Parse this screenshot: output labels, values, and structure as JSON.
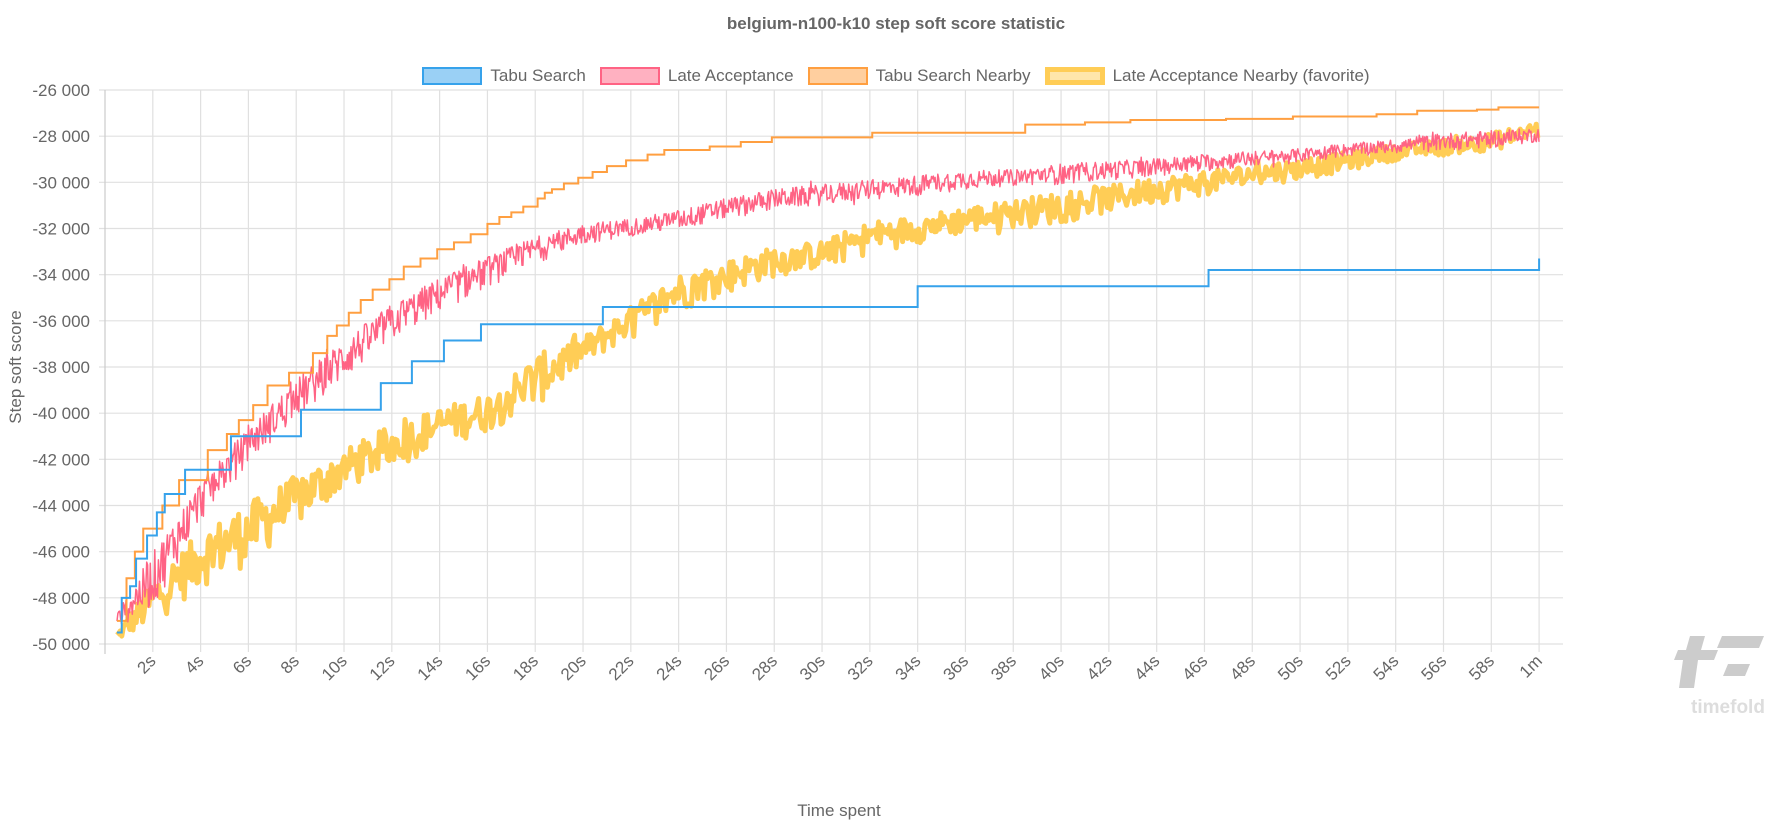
{
  "chart_data": {
    "type": "line",
    "title": "belgium-n100-k10 step soft score statistic",
    "xlabel": "Time spent",
    "ylabel": "Step soft score",
    "xlim": [
      0,
      61
    ],
    "ylim": [
      -50000,
      -26000
    ],
    "grid": true,
    "legend_placement": "top",
    "y_ticks": [
      -26000,
      -28000,
      -30000,
      -32000,
      -34000,
      -36000,
      -38000,
      -40000,
      -42000,
      -44000,
      -46000,
      -48000,
      -50000
    ],
    "y_tick_labels": [
      "-26 000",
      "-28 000",
      "-30 000",
      "-32 000",
      "-34 000",
      "-36 000",
      "-38 000",
      "-40 000",
      "-42 000",
      "-44 000",
      "-46 000",
      "-48 000",
      "-50 000"
    ],
    "x_ticks": [
      2,
      4,
      6,
      8,
      10,
      12,
      14,
      16,
      18,
      20,
      22,
      24,
      26,
      28,
      30,
      32,
      34,
      36,
      38,
      40,
      42,
      44,
      46,
      48,
      50,
      52,
      54,
      56,
      58,
      60
    ],
    "x_tick_labels": [
      "2s",
      "4s",
      "6s",
      "8s",
      "10s",
      "12s",
      "14s",
      "16s",
      "18s",
      "20s",
      "22s",
      "24s",
      "26s",
      "28s",
      "30s",
      "32s",
      "34s",
      "36s",
      "38s",
      "40s",
      "42s",
      "44s",
      "46s",
      "48s",
      "50s",
      "52s",
      "54s",
      "56s",
      "58s",
      "1m"
    ],
    "series": [
      {
        "name": "Tabu Search",
        "color": "#36a2eb",
        "fill": "#9ad0f5",
        "style": "step",
        "x": [
          0.5,
          0.7,
          1.05,
          1.3,
          1.76,
          2.17,
          2.5,
          3.35,
          5.27,
          8.2,
          11.54,
          12.84,
          14.18,
          15.73,
          20.83,
          34.0,
          46.17,
          60.0,
          60.0
        ],
        "y": [
          -49500,
          -48000,
          -47500,
          -46300,
          -45300,
          -44300,
          -43500,
          -42450,
          -41000,
          -39850,
          -38700,
          -37750,
          -36850,
          -36150,
          -35400,
          -34500,
          -33800,
          -33800,
          -33300
        ]
      },
      {
        "name": "Late Acceptance",
        "color": "#ff6384",
        "fill": "#ffb1c1",
        "style": "noisy",
        "x": [
          0.5,
          2,
          4,
          6,
          8,
          10,
          12,
          14,
          16,
          18,
          20,
          22,
          24,
          26,
          28,
          30,
          32,
          34,
          36,
          38,
          40,
          42,
          44,
          46,
          48,
          50,
          52,
          54,
          56,
          58,
          60
        ],
        "low": [
          -49500,
          -49000,
          -45100,
          -42500,
          -40700,
          -39000,
          -37300,
          -36000,
          -34900,
          -33800,
          -32900,
          -32500,
          -32300,
          -31800,
          -31400,
          -31200,
          -31000,
          -30800,
          -30500,
          -30300,
          -30300,
          -30100,
          -29900,
          -29700,
          -29500,
          -29300,
          -29000,
          -28900,
          -28800,
          -28700,
          -28400
        ],
        "high": [
          -48500,
          -45500,
          -42500,
          -40300,
          -38100,
          -36400,
          -34900,
          -33800,
          -32900,
          -32100,
          -31600,
          -31400,
          -31000,
          -30500,
          -30100,
          -29900,
          -29700,
          -29500,
          -29300,
          -29300,
          -29000,
          -28900,
          -28800,
          -28600,
          -28500,
          -28400,
          -28200,
          -28000,
          -27700,
          -27600,
          -27500
        ]
      },
      {
        "name": "Tabu Search Nearby",
        "color": "#ff9f40",
        "fill": "#ffcf9f",
        "style": "step",
        "x": [
          0.5,
          0.9,
          1.25,
          1.6,
          2.4,
          3.1,
          4.3,
          5.1,
          5.6,
          6.2,
          6.8,
          7.7,
          8.7,
          9.3,
          9.7,
          10.2,
          10.7,
          11.2,
          11.9,
          12.5,
          13.2,
          13.9,
          14.6,
          15.3,
          16.0,
          16.5,
          17.0,
          17.5,
          18.1,
          18.4,
          18.7,
          19.2,
          19.8,
          20.4,
          21.0,
          21.8,
          22.7,
          23.4,
          25.3,
          26.6,
          27.9,
          32.1,
          38.5,
          41.0,
          42.9,
          46.9,
          49.7,
          53.2,
          54.9,
          57.4,
          58.3,
          60.0
        ],
        "y": [
          -49000,
          -47150,
          -46000,
          -45000,
          -44000,
          -42900,
          -41600,
          -40900,
          -40300,
          -39650,
          -38800,
          -38250,
          -37400,
          -36650,
          -36200,
          -35650,
          -35100,
          -34650,
          -34200,
          -33650,
          -33300,
          -32900,
          -32600,
          -32250,
          -31800,
          -31500,
          -31300,
          -31050,
          -30700,
          -30450,
          -30300,
          -30050,
          -29800,
          -29550,
          -29300,
          -29050,
          -28800,
          -28600,
          -28450,
          -28250,
          -28050,
          -27850,
          -27500,
          -27400,
          -27300,
          -27250,
          -27150,
          -27050,
          -26900,
          -26850,
          -26750,
          -26750
        ]
      },
      {
        "name": "Late Acceptance Nearby (favorite)",
        "color": "#ffcd56",
        "fill": "#ffe6aa",
        "style": "noisy",
        "favorite": true,
        "x": [
          0.5,
          2,
          4,
          6,
          8,
          10,
          12,
          14,
          16,
          18,
          20,
          22,
          24,
          26,
          28,
          30,
          32,
          34,
          36,
          38,
          40,
          42,
          44,
          46,
          48,
          50,
          52,
          54,
          56,
          58,
          60
        ],
        "low": [
          -50000,
          -49600,
          -48100,
          -47200,
          -45500,
          -43800,
          -42900,
          -41800,
          -41200,
          -40300,
          -38300,
          -37000,
          -36000,
          -35100,
          -34400,
          -34000,
          -33400,
          -32900,
          -32500,
          -32300,
          -32100,
          -31600,
          -31200,
          -30800,
          -30400,
          -30100,
          -29700,
          -29200,
          -29000,
          -28800,
          -28400
        ],
        "high": [
          -49400,
          -46800,
          -44600,
          -43300,
          -42200,
          -41200,
          -40100,
          -39400,
          -38800,
          -37000,
          -36400,
          -35100,
          -33600,
          -33100,
          -32500,
          -32300,
          -31400,
          -31200,
          -30800,
          -30500,
          -30100,
          -29900,
          -29500,
          -29300,
          -29000,
          -28800,
          -28500,
          -28200,
          -28000,
          -27700,
          -27100
        ]
      }
    ]
  },
  "watermark": "timefold"
}
